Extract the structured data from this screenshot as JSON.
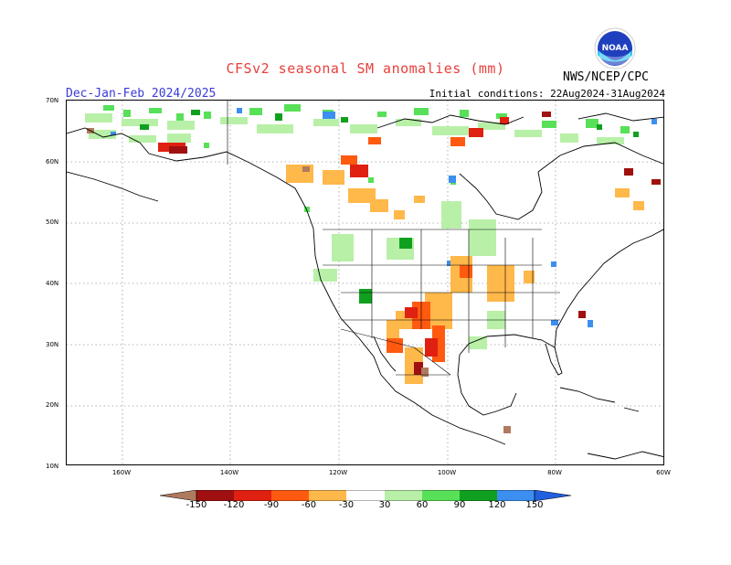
{
  "title": "CFSv2 seasonal SM anomalies (mm)",
  "season": "Dec-Jan-Feb 2024/2025",
  "initial_conditions": "Initial conditions: 22Aug2024-31Aug2024",
  "agency": "NWS/NCEP/CPC",
  "logo": {
    "icon": "noaa-logo-icon",
    "text": "NOAA"
  },
  "lat_labels": [
    "70N",
    "60N",
    "50N",
    "40N",
    "30N",
    "20N",
    "10N"
  ],
  "lon_labels": [
    "160W",
    "140W",
    "120W",
    "100W",
    "80W",
    "60W"
  ],
  "legend": {
    "labels": [
      "-150",
      "-120",
      "-90",
      "-60",
      "-30",
      "30",
      "60",
      "90",
      "120",
      "150"
    ],
    "colors": [
      "#b07a5e",
      "#a01010",
      "#e02010",
      "#ff5a10",
      "#ffb84a",
      "#ffffff",
      "#b8f0a8",
      "#58e058",
      "#10a020",
      "#3c8ef0",
      "#2060e0"
    ]
  },
  "colors": {
    "title": "#e8403a",
    "season": "#3a3ad8"
  }
}
